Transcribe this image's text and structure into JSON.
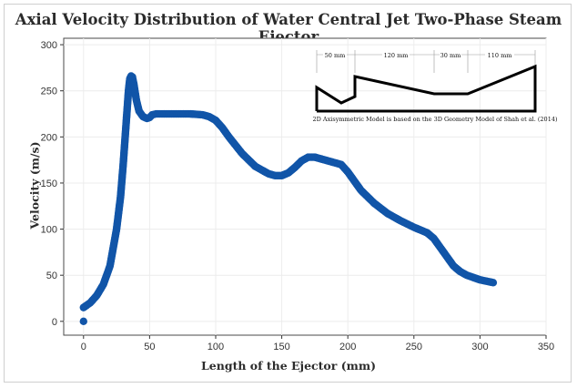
{
  "chart_data": {
    "type": "scatter",
    "title": "Axial Velocity Distribution of Water Central Jet Two-Phase Steam Ejector",
    "xlabel": "Length of the Ejector (mm)",
    "ylabel": "Velocity (m/s)",
    "xlim": [
      -15,
      350
    ],
    "ylim": [
      -15,
      307
    ],
    "xticks": [
      0,
      50,
      100,
      150,
      200,
      250,
      300,
      350
    ],
    "yticks": [
      0,
      50,
      100,
      150,
      200,
      250,
      300
    ],
    "grid": true,
    "series": [
      {
        "color": "#1155a8",
        "x": [
          0,
          0,
          5,
          10,
          15,
          20,
          25,
          28,
          30,
          32,
          34,
          35,
          36,
          37,
          38,
          40,
          42,
          45,
          48,
          50,
          52,
          55,
          60,
          70,
          80,
          90,
          95,
          100,
          105,
          110,
          120,
          130,
          140,
          145,
          150,
          155,
          160,
          165,
          170,
          175,
          180,
          185,
          190,
          195,
          200,
          210,
          220,
          230,
          240,
          250,
          260,
          265,
          270,
          275,
          280,
          285,
          290,
          300,
          310
        ],
        "y": [
          0,
          15,
          20,
          28,
          40,
          60,
          100,
          135,
          170,
          210,
          250,
          263,
          266,
          265,
          258,
          240,
          228,
          222,
          220,
          221,
          224,
          225,
          225,
          225,
          225,
          224,
          222,
          218,
          210,
          200,
          182,
          168,
          160,
          158,
          158,
          161,
          167,
          174,
          178,
          178,
          176,
          174,
          172,
          170,
          162,
          142,
          128,
          117,
          109,
          102,
          96,
          90,
          80,
          70,
          60,
          54,
          50,
          45,
          42
        ]
      }
    ],
    "inset": {
      "dimensions": [
        "50 mm",
        "120 mm",
        "30 mm",
        "110 mm"
      ],
      "caption": "2D Axisymmetric Model is based on the 3D Geometry Model of Shah et al. (2014)"
    }
  }
}
